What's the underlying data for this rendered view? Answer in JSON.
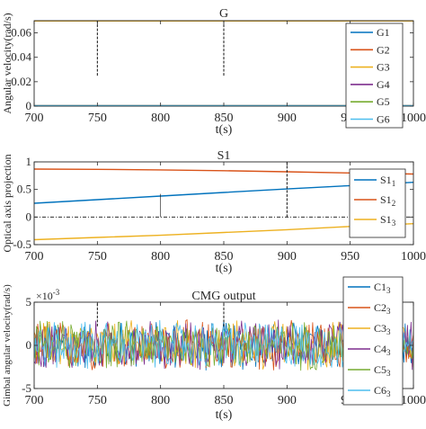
{
  "chart_data": [
    {
      "type": "line",
      "title": "G",
      "xlabel": "t(s)",
      "ylabel": "Angular velocity(rad/s)",
      "xlim": [
        700,
        1000
      ],
      "ylim": [
        0,
        0.07
      ],
      "xticks": [
        700,
        750,
        800,
        850,
        900,
        950,
        1000
      ],
      "xtick_labels": [
        "700",
        "750",
        "800",
        "850",
        "900",
        "950",
        "1000"
      ],
      "yticks": [
        0,
        0.02,
        0.04,
        0.06
      ],
      "ytick_labels": [
        "0",
        "0.02",
        "0.04",
        "0.06"
      ],
      "grid": false,
      "legend_position": "right",
      "series": [
        {
          "name": "G1",
          "color": "#0072BD",
          "x": [
            700,
            1000
          ],
          "y": [
            0.0003,
            0.0003
          ]
        },
        {
          "name": "G2",
          "color": "#D95319",
          "x": [
            700,
            1000
          ],
          "y": [
            0.0003,
            0.0003
          ]
        },
        {
          "name": "G3",
          "color": "#EDB120",
          "x": [
            700,
            1000
          ],
          "y": [
            0.0698,
            0.0698
          ]
        },
        {
          "name": "G4",
          "color": "#7E2F8E",
          "x": [
            700,
            1000
          ],
          "y": [
            0.0003,
            0.0003
          ]
        },
        {
          "name": "G5",
          "color": "#77AC30",
          "x": [
            700,
            1000
          ],
          "y": [
            0.0003,
            0.0003
          ]
        },
        {
          "name": "G6",
          "color": "#4DBEEE",
          "x": [
            700,
            1000
          ],
          "y": [
            0.0003,
            0.0003
          ]
        }
      ],
      "dashed_markers": [
        {
          "x": 750,
          "y": [
            0.025,
            0.07
          ]
        },
        {
          "x": 850,
          "y": [
            0.025,
            0.07
          ]
        }
      ]
    },
    {
      "type": "line",
      "title": "S1",
      "xlabel": "t(s)",
      "ylabel": "Optical axis projection",
      "xlim": [
        700,
        1000
      ],
      "ylim": [
        -0.5,
        1
      ],
      "xticks": [
        700,
        750,
        800,
        850,
        900,
        950,
        1000
      ],
      "xtick_labels": [
        "700",
        "750",
        "800",
        "850",
        "900",
        "950",
        "1000"
      ],
      "yticks": [
        -0.5,
        0,
        0.5,
        1
      ],
      "ytick_labels": [
        "-0.5",
        "0",
        "0.5",
        "1"
      ],
      "grid": false,
      "legend_position": "right",
      "series": [
        {
          "name_base": "S1",
          "name_sub": "1",
          "color": "#0072BD",
          "x": [
            700,
            750,
            800,
            850,
            900,
            950,
            1000
          ],
          "y": [
            0.25,
            0.315,
            0.38,
            0.445,
            0.51,
            0.57,
            0.63
          ]
        },
        {
          "name_base": "S1",
          "name_sub": "2",
          "color": "#D95319",
          "x": [
            700,
            750,
            800,
            850,
            900,
            950,
            1000
          ],
          "y": [
            0.87,
            0.865,
            0.855,
            0.84,
            0.82,
            0.8,
            0.78
          ]
        },
        {
          "name_base": "S1",
          "name_sub": "3",
          "color": "#EDB120",
          "x": [
            700,
            750,
            800,
            850,
            900,
            950,
            1000
          ],
          "y": [
            -0.41,
            -0.37,
            -0.33,
            -0.28,
            -0.23,
            -0.17,
            -0.12
          ]
        }
      ],
      "hline": {
        "y": 0,
        "style": "dashdot"
      },
      "dashed_markers": [
        {
          "x": 800,
          "y": [
            0,
            0.42
          ],
          "style": "solid"
        },
        {
          "x": 900,
          "y": [
            0,
            1
          ],
          "style": "dashed"
        }
      ]
    },
    {
      "type": "line",
      "title": "CMG output",
      "xlabel": "t(s)",
      "ylabel": "Gimbal angular velocity(rad/s)",
      "exponent_label": "×10",
      "exponent_power": "-3",
      "xlim": [
        700,
        1000
      ],
      "ylim": [
        -5,
        5
      ],
      "xticks": [
        700,
        750,
        800,
        850,
        900,
        950,
        1000
      ],
      "xtick_labels": [
        "700",
        "750",
        "800",
        "850",
        "900",
        "950",
        "1000"
      ],
      "yticks": [
        -5,
        0,
        5
      ],
      "ytick_labels": [
        "-5",
        "0",
        "5"
      ],
      "grid": false,
      "legend_position": "right",
      "noise": {
        "amplitude": 3.2,
        "samples_per_series": 320
      },
      "series": [
        {
          "name_base": "C1",
          "name_sub": "3",
          "color": "#0072BD"
        },
        {
          "name_base": "C2",
          "name_sub": "3",
          "color": "#D95319"
        },
        {
          "name_base": "C3",
          "name_sub": "3",
          "color": "#EDB120"
        },
        {
          "name_base": "C4",
          "name_sub": "3",
          "color": "#7E2F8E"
        },
        {
          "name_base": "C5",
          "name_sub": "3",
          "color": "#77AC30"
        },
        {
          "name_base": "C6",
          "name_sub": "3",
          "color": "#4DBEEE"
        }
      ],
      "dashed_markers": [
        {
          "x": 750,
          "y": [
            2.2,
            5
          ]
        },
        {
          "x": 850,
          "y": [
            2.2,
            5
          ]
        }
      ]
    }
  ]
}
